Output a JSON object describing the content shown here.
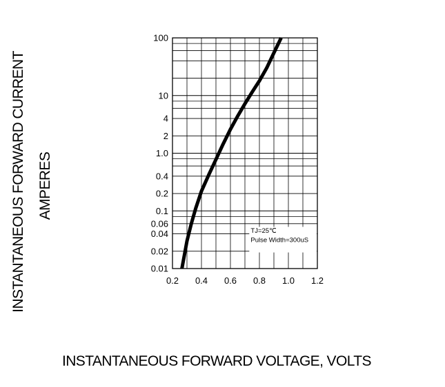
{
  "chart_data": {
    "type": "line",
    "xlabel": "INSTANTANEOUS FORWARD VOLTAGE,  VOLTS",
    "ylabel_line1": "INSTANTANEOUS FORWARD CURRENT",
    "ylabel_line2": "AMPERES",
    "xlim": [
      0.2,
      1.2
    ],
    "ylim": [
      0.01,
      100
    ],
    "y_scale": "log",
    "grid": true,
    "x_ticks": [
      0.2,
      0.4,
      0.6,
      0.8,
      1.0,
      1.2
    ],
    "x_tick_labels": [
      "0.2",
      "0.4",
      "0.6",
      "0.8",
      "1.0",
      "1.2"
    ],
    "y_ticks": [
      0.01,
      0.02,
      0.04,
      0.06,
      0.1,
      0.2,
      0.4,
      1.0,
      2,
      4,
      10,
      100
    ],
    "y_tick_labels": [
      "0.01",
      "0.02",
      "0.04",
      "0.06",
      "0.1",
      "0.2",
      "0.4",
      "1.0",
      "2",
      "4",
      "10",
      "100"
    ],
    "annotations": [
      "TJ=25℃",
      "Pulse Width=300uS"
    ],
    "colors": {
      "curve": "#000000",
      "grid": "#000000"
    },
    "series": [
      {
        "x": [
          0.265,
          0.28,
          0.3,
          0.33,
          0.36,
          0.4,
          0.45,
          0.5,
          0.55,
          0.6,
          0.65,
          0.7,
          0.75,
          0.8,
          0.85,
          0.9,
          0.95
        ],
        "y": [
          0.01,
          0.016,
          0.03,
          0.06,
          0.11,
          0.22,
          0.42,
          0.78,
          1.45,
          2.6,
          4.4,
          7.2,
          11.5,
          18,
          30,
          55,
          100
        ]
      }
    ]
  }
}
